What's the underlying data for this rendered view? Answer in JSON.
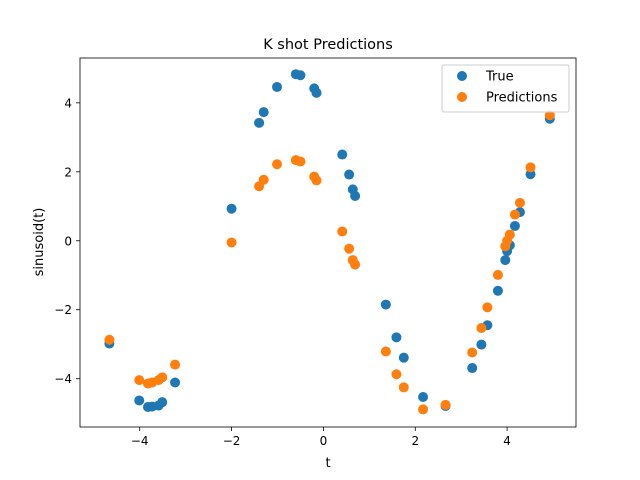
{
  "chart_data": {
    "type": "scatter",
    "title": "K shot Predictions",
    "xlabel": "t",
    "ylabel": "sinusoid(t)",
    "xlim": [
      -5.3,
      5.5
    ],
    "ylim": [
      -5.4,
      5.3
    ],
    "xticks": [
      -4,
      -2,
      0,
      2,
      4
    ],
    "yticks": [
      -4,
      -2,
      0,
      2,
      4
    ],
    "xtick_labels": [
      "−4",
      "−2",
      "0",
      "2",
      "4"
    ],
    "ytick_labels": [
      "−4",
      "−2",
      "0",
      "2",
      "4"
    ],
    "grid": false,
    "legend_position": "top-right",
    "series": [
      {
        "name": "True",
        "color": "#1f77b4",
        "points": [
          [
            -4.66,
            -2.98
          ],
          [
            -4.01,
            -4.63
          ],
          [
            -3.82,
            -4.82
          ],
          [
            -3.73,
            -4.81
          ],
          [
            -3.59,
            -4.78
          ],
          [
            -3.51,
            -4.68
          ],
          [
            -3.23,
            -4.11
          ],
          [
            -2.0,
            0.93
          ],
          [
            -1.4,
            3.42
          ],
          [
            -1.3,
            3.73
          ],
          [
            -1.01,
            4.46
          ],
          [
            -0.6,
            4.83
          ],
          [
            -0.5,
            4.8
          ],
          [
            -0.2,
            4.42
          ],
          [
            -0.15,
            4.29
          ],
          [
            0.41,
            2.5
          ],
          [
            0.56,
            1.92
          ],
          [
            0.64,
            1.49
          ],
          [
            0.69,
            1.3
          ],
          [
            1.36,
            -1.85
          ],
          [
            1.59,
            -2.8
          ],
          [
            1.75,
            -3.39
          ],
          [
            2.17,
            -4.53
          ],
          [
            2.66,
            -4.79
          ],
          [
            3.24,
            -3.69
          ],
          [
            3.44,
            -3.01
          ],
          [
            3.57,
            -2.45
          ],
          [
            3.8,
            -1.45
          ],
          [
            3.96,
            -0.56
          ],
          [
            4.0,
            -0.3
          ],
          [
            4.06,
            -0.13
          ],
          [
            4.17,
            0.43
          ],
          [
            4.28,
            0.83
          ],
          [
            4.51,
            1.93
          ],
          [
            4.93,
            3.54
          ]
        ]
      },
      {
        "name": "Predictions",
        "color": "#ff7f0e",
        "points": [
          [
            -4.66,
            -2.87
          ],
          [
            -4.01,
            -4.04
          ],
          [
            -3.82,
            -4.14
          ],
          [
            -3.73,
            -4.11
          ],
          [
            -3.59,
            -4.04
          ],
          [
            -3.51,
            -3.96
          ],
          [
            -3.23,
            -3.59
          ],
          [
            -2.0,
            -0.05
          ],
          [
            -1.4,
            1.58
          ],
          [
            -1.3,
            1.77
          ],
          [
            -1.01,
            2.22
          ],
          [
            -0.6,
            2.34
          ],
          [
            -0.5,
            2.3
          ],
          [
            -0.2,
            1.86
          ],
          [
            -0.15,
            1.75
          ],
          [
            0.41,
            0.27
          ],
          [
            0.56,
            -0.23
          ],
          [
            0.64,
            -0.56
          ],
          [
            0.69,
            -0.69
          ],
          [
            1.36,
            -3.21
          ],
          [
            1.59,
            -3.87
          ],
          [
            1.75,
            -4.25
          ],
          [
            2.17,
            -4.89
          ],
          [
            2.66,
            -4.76
          ],
          [
            3.24,
            -3.24
          ],
          [
            3.44,
            -2.53
          ],
          [
            3.57,
            -1.93
          ],
          [
            3.8,
            -0.99
          ],
          [
            3.96,
            -0.16
          ],
          [
            4.0,
            0.0
          ],
          [
            4.06,
            0.18
          ],
          [
            4.17,
            0.76
          ],
          [
            4.28,
            1.1
          ],
          [
            4.51,
            2.13
          ],
          [
            4.93,
            3.64
          ]
        ]
      }
    ]
  }
}
